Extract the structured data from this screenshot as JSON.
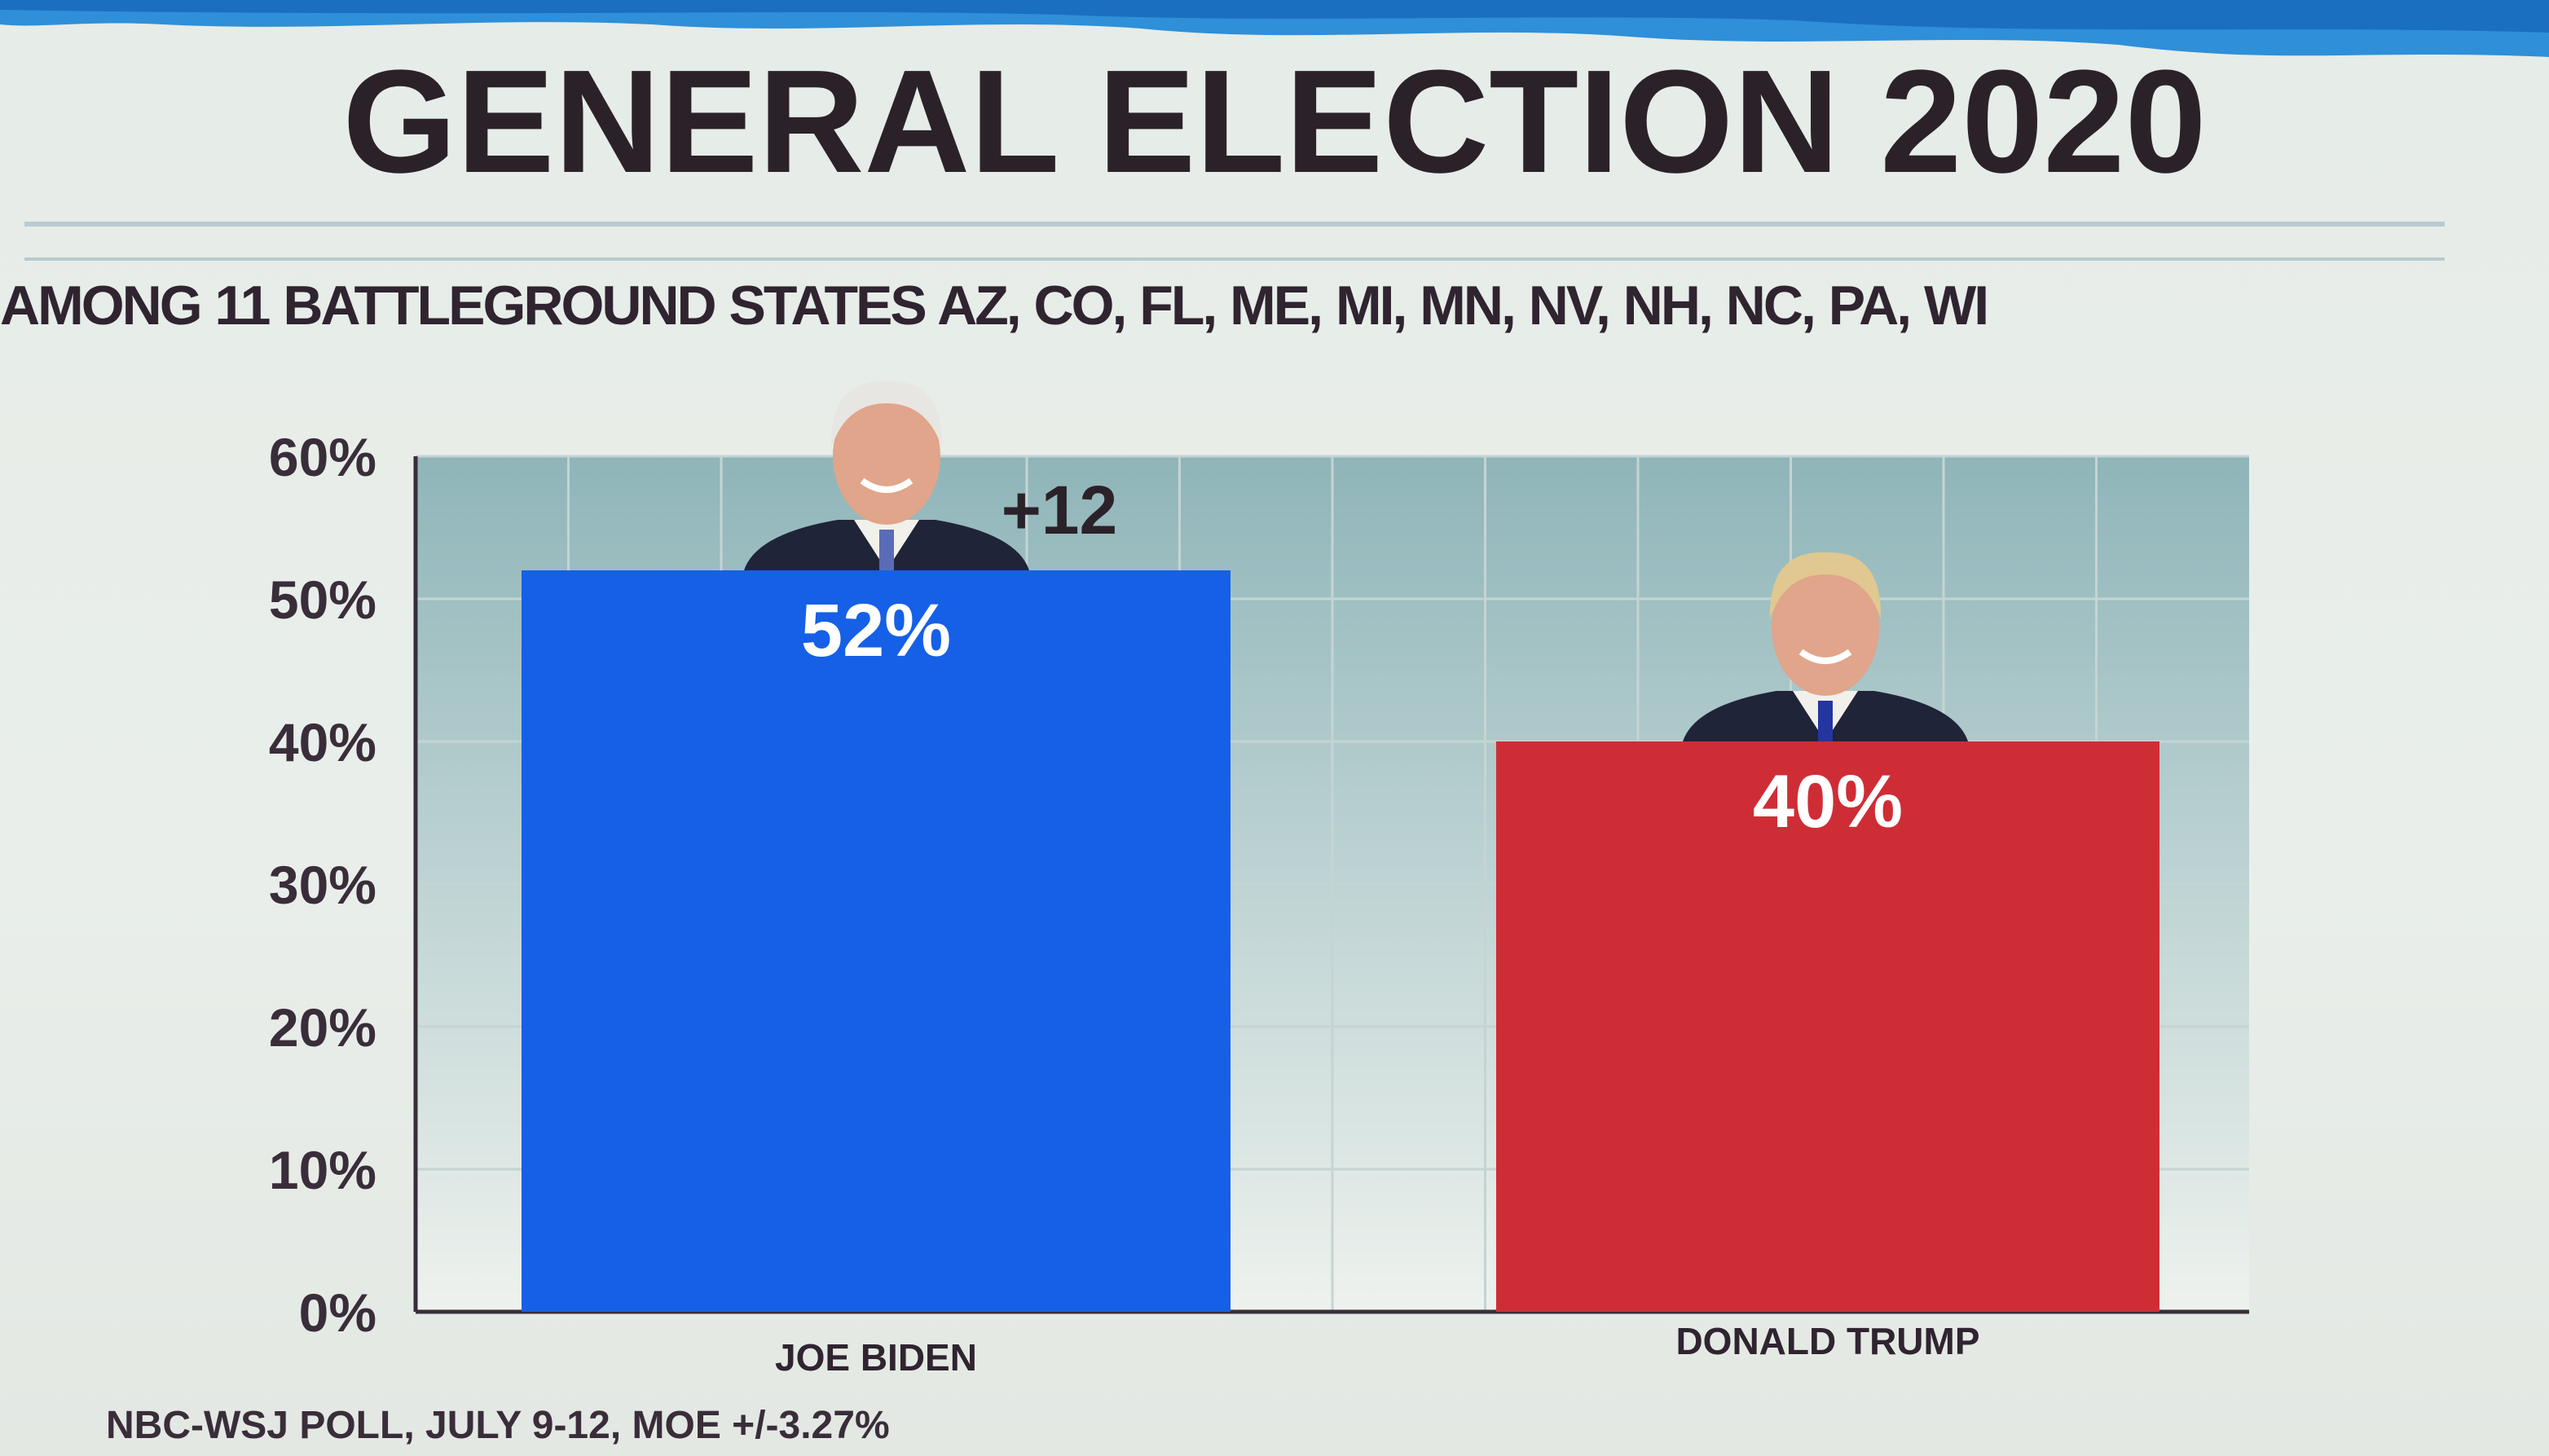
{
  "title": "GENERAL ELECTION 2020",
  "subtitle": "AMONG 11 BATTLEGROUND STATES AZ, CO, FL, ME, MI, MN, NV, NH, NC, PA, WI",
  "footnote": "NBC-WSJ POLL, JULY 9-12, MOE +/-3.27%",
  "colors": {
    "biden": "#1560e6",
    "trump": "#cf2d36",
    "plot_bg_top": "#8fb5b9",
    "plot_bg_bottom": "#eef2ee"
  },
  "chart_data": {
    "type": "bar",
    "title": "GENERAL ELECTION 2020",
    "subtitle": "AMONG 11 BATTLEGROUND STATES AZ, CO, FL, ME, MI, MN, NV, NH, NC, PA, WI",
    "categories": [
      "JOE BIDEN",
      "DONALD TRUMP"
    ],
    "values": [
      52,
      40
    ],
    "value_labels": [
      "52%",
      "40%"
    ],
    "annotations": [
      {
        "text": "+12",
        "target": "JOE BIDEN"
      }
    ],
    "ylim": [
      0,
      60
    ],
    "yticks": [
      "0%",
      "10%",
      "20%",
      "30%",
      "40%",
      "50%",
      "60%"
    ],
    "xlabel": "",
    "ylabel": "",
    "grid": true,
    "legend": "none"
  }
}
